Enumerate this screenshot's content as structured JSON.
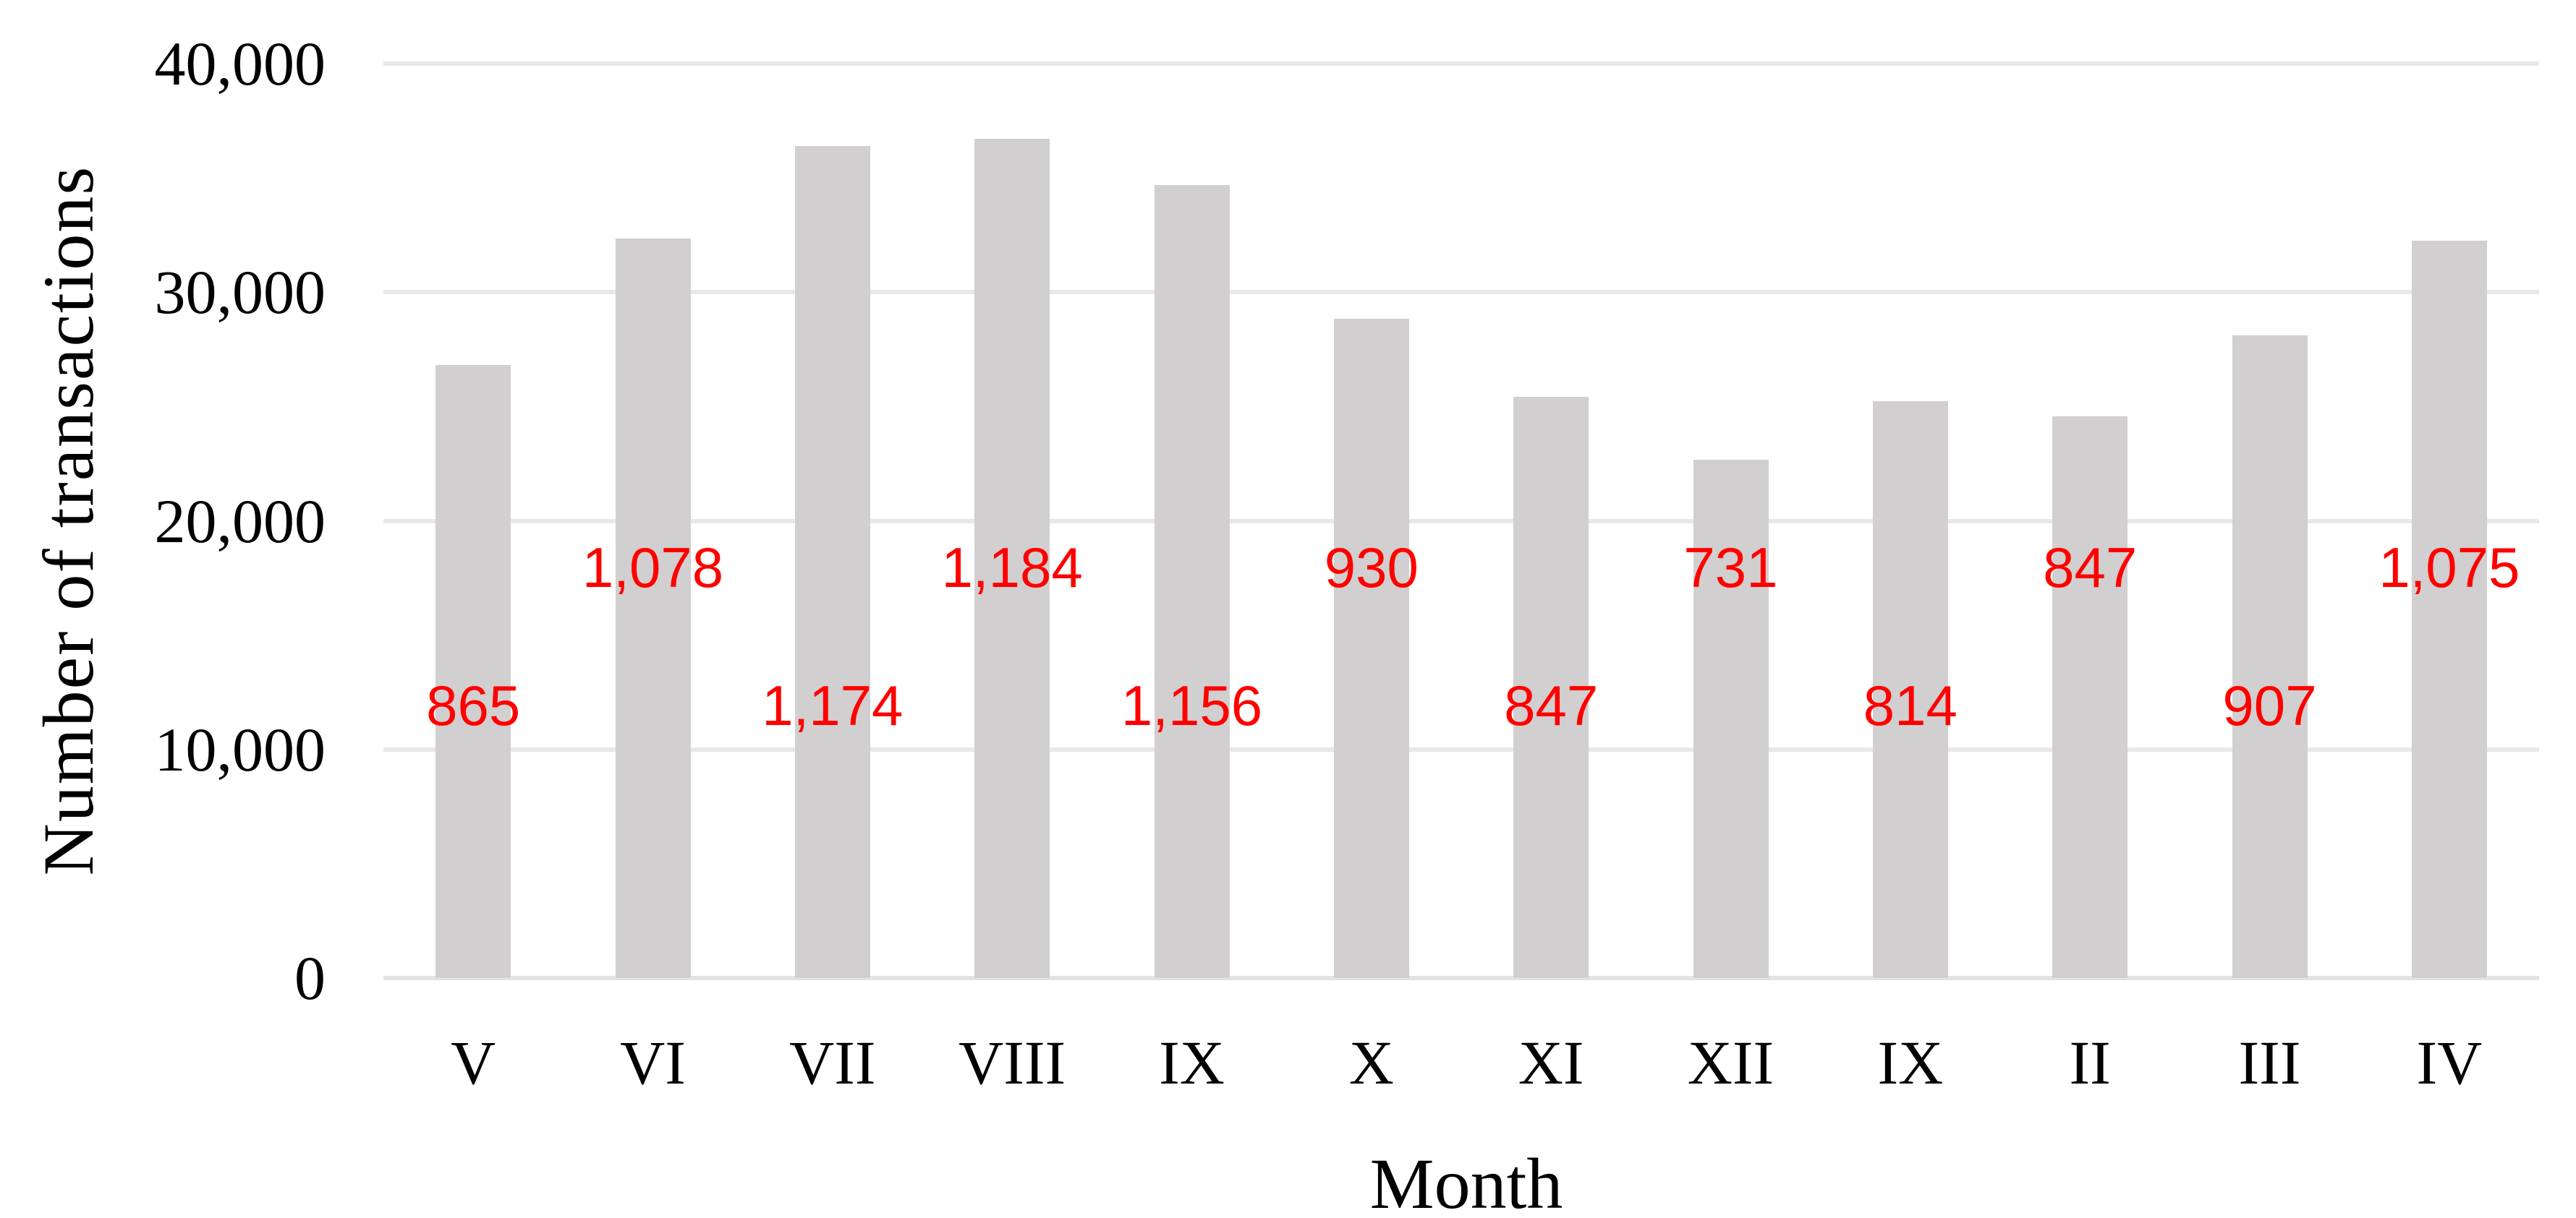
{
  "chart_data": {
    "type": "bar",
    "title": "",
    "xlabel": "Month",
    "ylabel": "Number of transactions",
    "categories": [
      "V",
      "VI",
      "VII",
      "VIII",
      "IX",
      "X",
      "XI",
      "XII",
      "IX",
      "II",
      "III",
      "IV"
    ],
    "series": [
      {
        "name": "transactions",
        "values": [
          26815,
          32340,
          36394,
          36704,
          34680,
          28830,
          25410,
          22661,
          25234,
          24563,
          28117,
          32250
        ]
      }
    ],
    "data_labels": {
      "text": [
        "865",
        "1,078",
        "1,174",
        "1,184",
        "1,156",
        "930",
        "847",
        "731",
        "814",
        "847",
        "907",
        "1,075"
      ],
      "position": [
        "low",
        "high",
        "low",
        "high",
        "low",
        "high",
        "low",
        "high",
        "low",
        "high",
        "low",
        "high"
      ],
      "color": "#ff0000"
    },
    "ylim": [
      0,
      40000
    ],
    "yticks": [
      {
        "value": 0,
        "label": "0"
      },
      {
        "value": 10000,
        "label": "10,000"
      },
      {
        "value": 20000,
        "label": "20,000"
      },
      {
        "value": 30000,
        "label": "30,000"
      },
      {
        "value": 40000,
        "label": "40,000"
      }
    ],
    "grid": "horizontal",
    "legend": "none",
    "colors": {
      "bar": "#d1cfcf",
      "gridline": "#e8e8e8",
      "axis_line": "#e3e3e3",
      "data_label": "#ff0000",
      "text": "#000000"
    }
  }
}
